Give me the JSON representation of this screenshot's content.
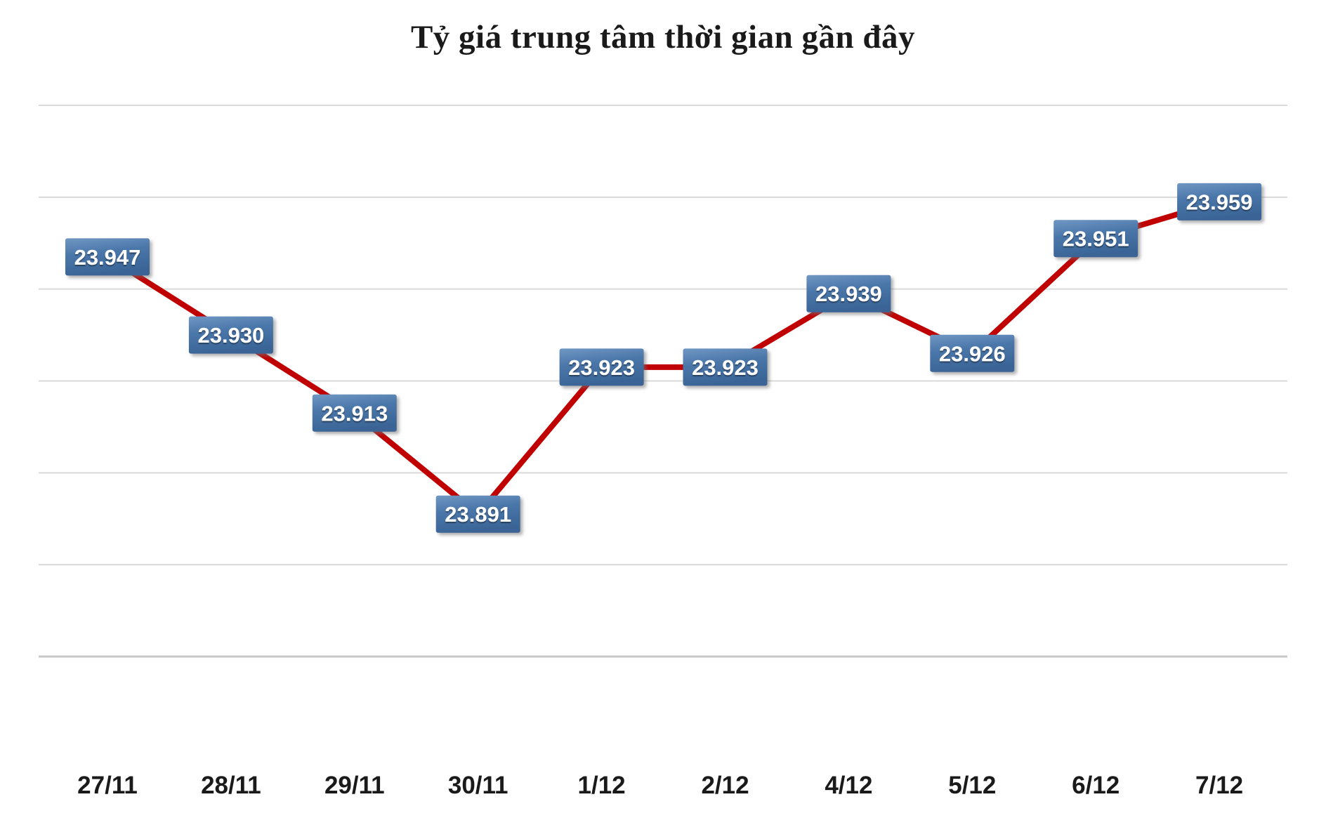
{
  "title": "Tỷ giá trung tâm thời gian gần đây",
  "chart_data": {
    "type": "line",
    "title": "Tỷ giá trung tâm thời gian gần đây",
    "categories": [
      "27/11",
      "28/11",
      "29/11",
      "30/11",
      "1/12",
      "2/12",
      "4/12",
      "5/12",
      "6/12",
      "7/12"
    ],
    "series": [
      {
        "name": "Tỷ giá trung tâm",
        "values": [
          23.947,
          23.93,
          23.913,
          23.891,
          23.923,
          23.923,
          23.939,
          23.926,
          23.951,
          23.959
        ],
        "value_labels": [
          "23.947",
          "23.930",
          "23.913",
          "23.891",
          "23.923",
          "23.923",
          "23.939",
          "23.926",
          "23.951",
          "23.959"
        ]
      }
    ],
    "xlabel": "",
    "ylabel": "",
    "ylim": [
      23.86,
      23.98
    ],
    "gridline_step": 0.02,
    "grid": true,
    "legend": false,
    "y_axis_labels_visible": false,
    "data_labels_visible": true,
    "colors": {
      "line": "#c00000",
      "label_box_top": "#7097c3",
      "label_box_mid": "#4a76a9",
      "label_box_bottom": "#3a6496",
      "label_text": "#ffffff",
      "gridline": "#dadada",
      "axis_line": "#c8c8c8",
      "date_text": "#1a1a1a",
      "title_text": "#1a1a1a",
      "background": "#ffffff"
    }
  }
}
